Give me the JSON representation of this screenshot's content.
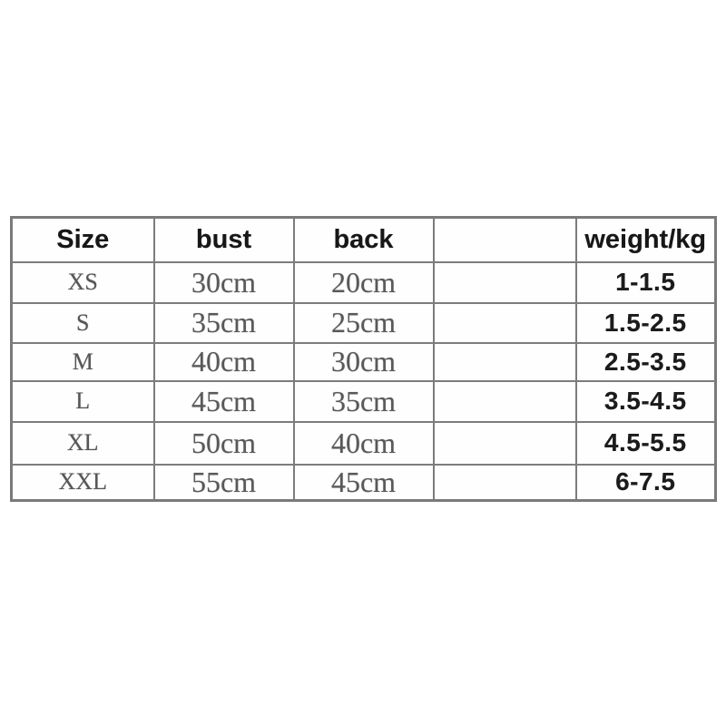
{
  "chart_data": {
    "type": "table",
    "title": "",
    "columns": [
      "Size",
      "bust",
      "back",
      "",
      "weight/kg"
    ],
    "rows": [
      [
        "XS",
        "30cm",
        "20cm",
        "",
        "1-1.5"
      ],
      [
        "S",
        "35cm",
        "25cm",
        "",
        "1.5-2.5"
      ],
      [
        "M",
        "40cm",
        "30cm",
        "",
        "2.5-3.5"
      ],
      [
        "L",
        "45cm",
        "35cm",
        "",
        "3.5-4.5"
      ],
      [
        "XL",
        "50cm",
        "40cm",
        "",
        "4.5-5.5"
      ],
      [
        "XXL",
        "55cm",
        "45cm",
        "",
        "6-7.5"
      ]
    ],
    "layout_hints": {
      "header_row": true,
      "empty_column_index": 3,
      "grid": true
    }
  },
  "colors": {
    "background": "#ffffff",
    "border": "#7c7c7c",
    "header_text": "#171717",
    "measurement_text": "#595959",
    "weight_text": "#1b1b1b"
  }
}
